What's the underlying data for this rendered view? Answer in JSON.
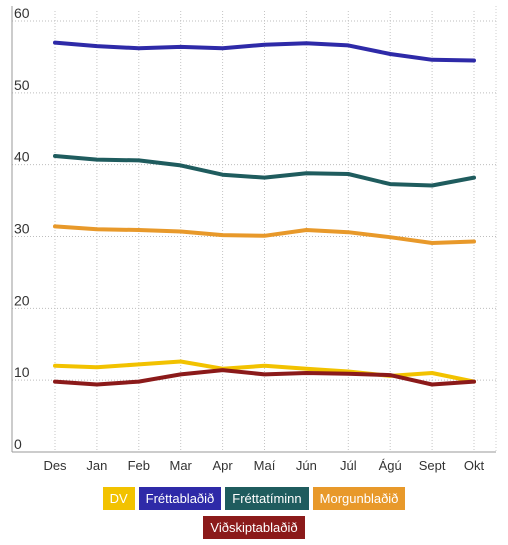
{
  "chart_data": {
    "type": "line",
    "categories": [
      "Des",
      "Jan",
      "Feb",
      "Mar",
      "Apr",
      "Maí",
      "Jún",
      "Júl",
      "Ágú",
      "Sept",
      "Okt"
    ],
    "ylim": [
      0,
      60
    ],
    "yticks": [
      0,
      10,
      20,
      30,
      40,
      50,
      60
    ],
    "grid": true,
    "legend_position": "bottom",
    "series": [
      {
        "name": "DV",
        "color": "#f2c200",
        "values": [
          12.0,
          11.8,
          12.2,
          12.6,
          11.6,
          12.0,
          11.6,
          11.2,
          10.6,
          11.0,
          9.8
        ]
      },
      {
        "name": "Fréttablaðið",
        "color": "#2e2aa8",
        "values": [
          57.0,
          56.5,
          56.2,
          56.4,
          56.2,
          56.7,
          56.9,
          56.6,
          55.4,
          54.6,
          54.5
        ]
      },
      {
        "name": "Fréttatíminn",
        "color": "#1f5c5e",
        "values": [
          41.2,
          40.7,
          40.6,
          39.9,
          38.6,
          38.2,
          38.8,
          38.7,
          37.3,
          37.1,
          38.2
        ]
      },
      {
        "name": "Morgunblaðið",
        "color": "#e8992a",
        "values": [
          31.4,
          31.0,
          30.9,
          30.7,
          30.2,
          30.1,
          30.9,
          30.6,
          29.9,
          29.1,
          29.3
        ]
      },
      {
        "name": "Viðskiptablaðið",
        "color": "#8b1a1a",
        "values": [
          9.8,
          9.4,
          9.8,
          10.8,
          11.4,
          10.8,
          11.0,
          10.9,
          10.7,
          9.4,
          9.8
        ]
      }
    ]
  }
}
